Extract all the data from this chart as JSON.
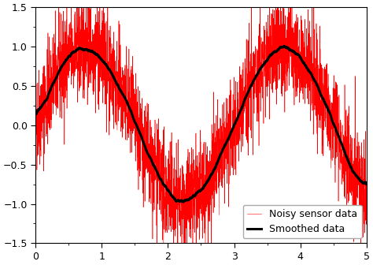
{
  "xlim": [
    0,
    5
  ],
  "ylim": [
    -1.5,
    1.5
  ],
  "xticks": [
    0,
    1,
    2,
    3,
    4,
    5
  ],
  "yticks": [
    -1.5,
    -1.0,
    -0.5,
    0,
    0.5,
    1.0,
    1.5
  ],
  "noisy_color": "#ff0000",
  "smooth_color": "#000000",
  "noisy_linewidth": 0.4,
  "smooth_linewidth": 2.2,
  "noisy_label": "Noisy sensor data",
  "smooth_label": "Smoothed data",
  "noise_amplitude": 0.32,
  "signal_amplitude": 1.0,
  "period": 3.0,
  "num_points": 3000,
  "smoothing_window": 200,
  "legend_loc": "lower right",
  "legend_fontsize": 9,
  "background_color": "#ffffff",
  "seed": 42
}
